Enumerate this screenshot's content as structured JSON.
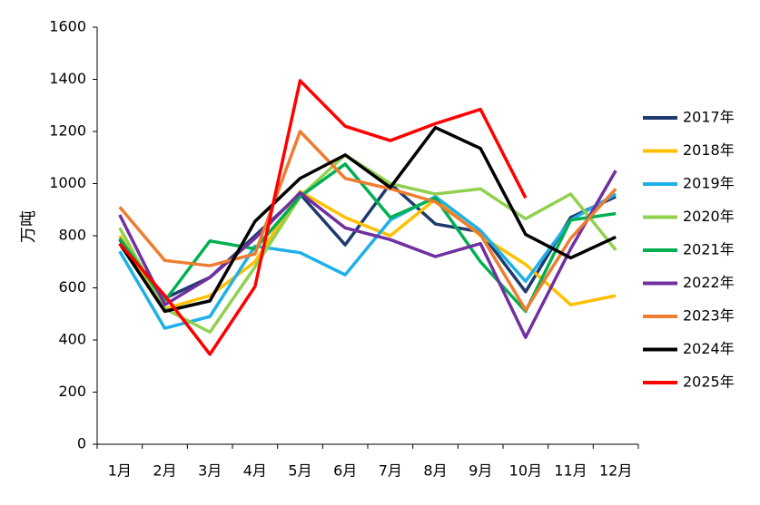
{
  "chart_data": {
    "type": "line",
    "y_label": "万吨",
    "categories": [
      "1月",
      "2月",
      "3月",
      "4月",
      "5月",
      "6月",
      "7月",
      "8月",
      "9月",
      "10月",
      "11月",
      "12月"
    ],
    "ylim": [
      0,
      1600
    ],
    "yticks": [
      0,
      200,
      400,
      600,
      800,
      1000,
      1200,
      1400,
      1600
    ],
    "grid": false,
    "legend": "right",
    "series": [
      {
        "name": "2017年",
        "color": "#1f3a6e",
        "values": [
          785,
          560,
          640,
          800,
          960,
          765,
          1000,
          845,
          815,
          585,
          870,
          950
        ]
      },
      {
        "name": "2018年",
        "color": "#ffc000",
        "values": [
          800,
          520,
          570,
          700,
          970,
          870,
          800,
          940,
          800,
          690,
          535,
          570
        ]
      },
      {
        "name": "2019年",
        "color": "#1fb0e8",
        "values": [
          740,
          445,
          490,
          760,
          735,
          650,
          860,
          950,
          820,
          625,
          860,
          960
        ]
      },
      {
        "name": "2020年",
        "color": "#92d050",
        "values": [
          830,
          520,
          430,
          680,
          950,
          1110,
          1000,
          960,
          980,
          865,
          960,
          745
        ]
      },
      {
        "name": "2021年",
        "color": "#00b050",
        "values": [
          790,
          550,
          780,
          750,
          950,
          1075,
          870,
          945,
          700,
          510,
          860,
          885
        ]
      },
      {
        "name": "2022年",
        "color": "#7030a0",
        "values": [
          880,
          535,
          640,
          790,
          965,
          830,
          785,
          720,
          770,
          410,
          750,
          1050
        ]
      },
      {
        "name": "2023年",
        "color": "#ed7d31",
        "values": [
          910,
          705,
          685,
          730,
          1200,
          1020,
          980,
          930,
          805,
          515,
          790,
          980
        ]
      },
      {
        "name": "2024年",
        "color": "#000000",
        "values": [
          770,
          510,
          550,
          855,
          1020,
          1110,
          985,
          1215,
          1135,
          805,
          715,
          795
        ]
      },
      {
        "name": "2025年",
        "color": "#ff0000",
        "values": [
          770,
          570,
          345,
          605,
          1395,
          1220,
          1165,
          1230,
          1285,
          945,
          null,
          null
        ]
      }
    ]
  }
}
